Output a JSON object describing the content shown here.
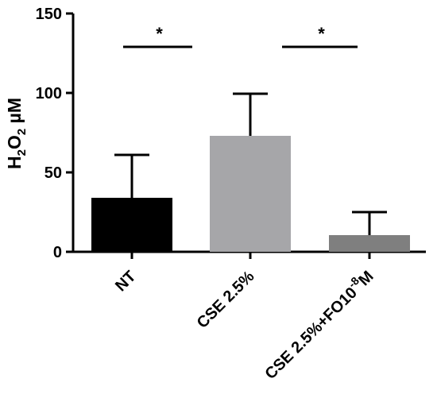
{
  "chart_data": {
    "type": "bar",
    "title": "",
    "xlabel": "",
    "ylabel": {
      "base": "H",
      "sub1": "2",
      "mid": "O",
      "sub2": "2",
      "unit": " µM"
    },
    "categories": [
      "NT",
      "CSE 2.5%",
      "CSE 2.5%+FO10"
    ],
    "category_suffix": {
      "exponent": "-8",
      "unit": "M"
    },
    "values": [
      34,
      73,
      10.5
    ],
    "error_upper": [
      61,
      99.5,
      25
    ],
    "ylim": [
      0,
      150
    ],
    "yticks": [
      "0",
      "50",
      "100",
      "150"
    ],
    "colors": [
      "#000000",
      "#a6a6a9",
      "#7f7f7f"
    ],
    "grid": false,
    "significance": [
      {
        "from": 0,
        "to": 1,
        "label": "*"
      },
      {
        "from": 1,
        "to": 2,
        "label": "*"
      }
    ]
  }
}
